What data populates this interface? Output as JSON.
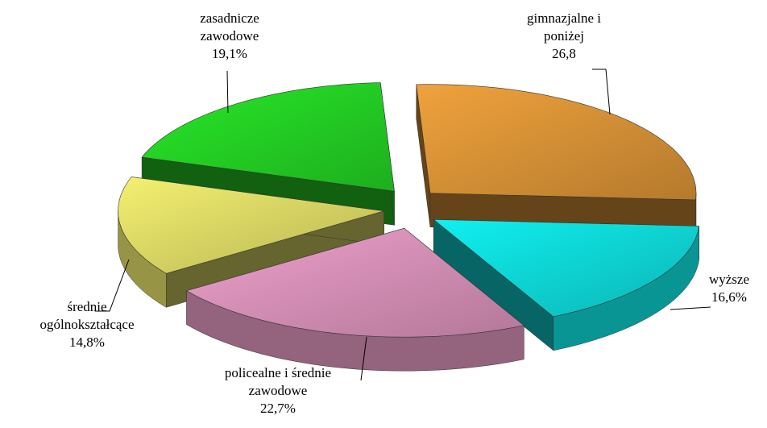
{
  "chart_data": {
    "type": "pie",
    "categories": [
      "gimnazjalne i\nponiżej",
      "wyższe",
      "policealne i średnie\nzawodowe",
      "średnie\nogólnokształcące",
      "zasadnicze\nzawodowe"
    ],
    "values": [
      26.8,
      16.6,
      22.7,
      14.8,
      19.1
    ],
    "value_labels": [
      "26,8",
      "16,6%",
      "22,7%",
      "14,8%",
      "19,1%"
    ],
    "colors": [
      "#f0a23c",
      "#10f0f0",
      "#eea0cc",
      "#f4f070",
      "#28e828"
    ]
  }
}
